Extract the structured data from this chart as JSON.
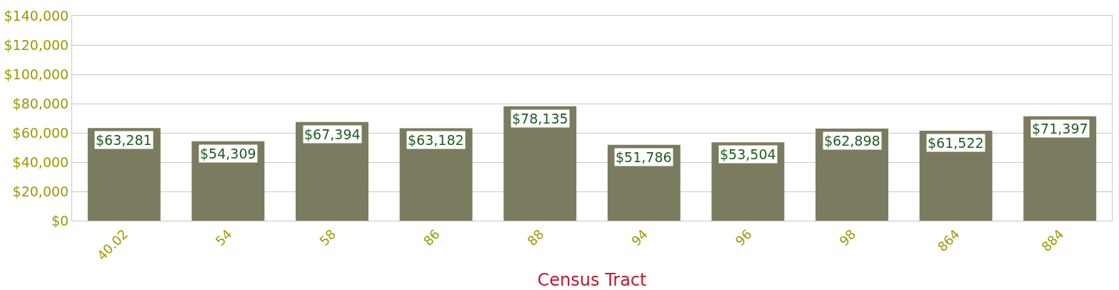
{
  "chart_data": {
    "type": "bar",
    "xlabel": "Census Tract",
    "categories": [
      "40.02",
      "54",
      "58",
      "86",
      "88",
      "94",
      "96",
      "98",
      "864",
      "884"
    ],
    "values": [
      63281,
      54309,
      67394,
      63182,
      78135,
      51786,
      53504,
      62898,
      61522,
      71397
    ],
    "value_labels": [
      "$63,281",
      "$54,309",
      "$67,394",
      "$63,182",
      "$78,135",
      "$51,786",
      "$53,504",
      "$62,898",
      "$61,522",
      "$71,397"
    ],
    "color": "#7b7b5f",
    "ylim": [
      0,
      140000
    ],
    "yticks": [
      {
        "value": 0,
        "label": "$0"
      },
      {
        "value": 20000,
        "label": "$20,000"
      },
      {
        "value": 40000,
        "label": "$40,000"
      },
      {
        "value": 60000,
        "label": "$60,000"
      },
      {
        "value": 80000,
        "label": "$80,000"
      },
      {
        "value": 100000,
        "label": "$100,000"
      },
      {
        "value": 120000,
        "label": "$120,000"
      },
      {
        "value": 140000,
        "label": "$140,000"
      }
    ],
    "grid": "y"
  }
}
